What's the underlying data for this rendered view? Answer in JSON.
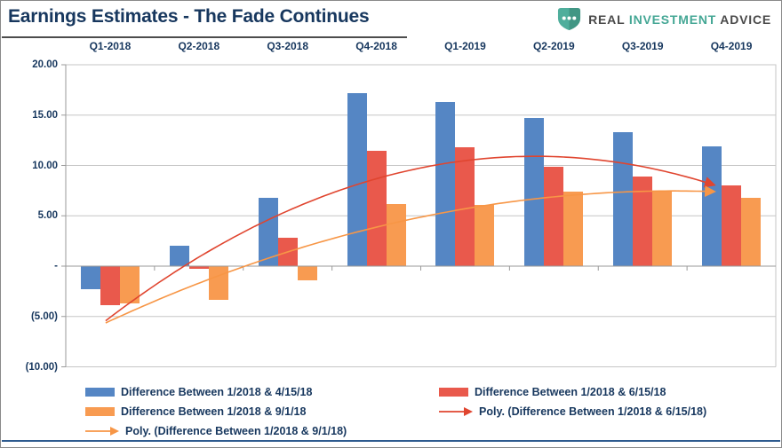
{
  "title": "Earnings Estimates - The Fade Continues",
  "logo": {
    "text": [
      "REAL",
      "INVESTMENT",
      "ADVICE"
    ],
    "teal": "#45a795",
    "dark_gray": "#4a4a4a",
    "shield_color": "#4FAE9C"
  },
  "chart_data": {
    "type": "bar",
    "title": "Earnings Estimates - The Fade Continues",
    "categories": [
      "Q1-2018",
      "Q2-2018",
      "Q3-2018",
      "Q4-2018",
      "Q1-2019",
      "Q2-2019",
      "Q3-2019",
      "Q4-2019"
    ],
    "series": [
      {
        "name": "Difference Between 1/2018 & 4/15/18",
        "color": "#5586C4",
        "values": [
          -2.3,
          2.0,
          6.8,
          17.2,
          16.3,
          14.7,
          13.3,
          11.9
        ]
      },
      {
        "name": "Difference Between 1/2018 & 6/15/18",
        "color": "#E9594C",
        "values": [
          -3.9,
          -0.3,
          2.8,
          11.5,
          11.8,
          9.9,
          8.9,
          8.0
        ]
      },
      {
        "name": "Difference Between 1/2018 & 9/1/18",
        "color": "#F89B51",
        "values": [
          -3.7,
          -3.3,
          -1.4,
          6.2,
          6.1,
          7.4,
          7.4,
          6.8
        ]
      }
    ],
    "trendlines": [
      {
        "name": "Poly. (Difference Between 1/2018 & 6/15/18)",
        "color": "#E0452F",
        "poly2": {
          "a": -0.6982,
          "b": 6.6841,
          "c": -5.0877
        },
        "t0": -0.05,
        "t1": 6.82
      },
      {
        "name": "Poly. (Difference Between 1/2018 & 9/1/18)",
        "color": "#F79646",
        "poly2": {
          "a": -0.3197,
          "b": 4.0625,
          "c": -5.437
        },
        "t0": -0.05,
        "t1": 6.82
      }
    ],
    "y_ticks": [
      {
        "v": 20,
        "label": "20.00"
      },
      {
        "v": 15,
        "label": "15.00"
      },
      {
        "v": 10,
        "label": "10.00"
      },
      {
        "v": 5,
        "label": "5.00"
      },
      {
        "v": 0,
        "label": "-"
      },
      {
        "v": -5,
        "label": "(5.00)"
      },
      {
        "v": -10,
        "label": "(10.00)"
      }
    ],
    "ylim": [
      -10,
      20
    ],
    "grid": true,
    "category_labels_position": "top",
    "legend_position": "bottom",
    "negative_format": "parentheses"
  },
  "legend": {
    "columns": [
      {
        "items": [
          {
            "swatch": "bar",
            "color": "#5586C4",
            "label": "Difference Between 1/2018 & 4/15/18"
          },
          {
            "swatch": "bar",
            "color": "#F89B51",
            "label": "Difference Between 1/2018 & 9/1/18"
          },
          {
            "swatch": "arrow",
            "color": "#F79646",
            "label": "Poly. (Difference Between 1/2018 & 9/1/18)"
          }
        ]
      },
      {
        "items": [
          {
            "swatch": "bar",
            "color": "#E9594C",
            "label": "Difference Between 1/2018 & 6/15/18"
          },
          {
            "swatch": "arrow",
            "color": "#E0452F",
            "label": "Poly. (Difference Between 1/2018 & 6/15/18)"
          }
        ]
      }
    ]
  }
}
